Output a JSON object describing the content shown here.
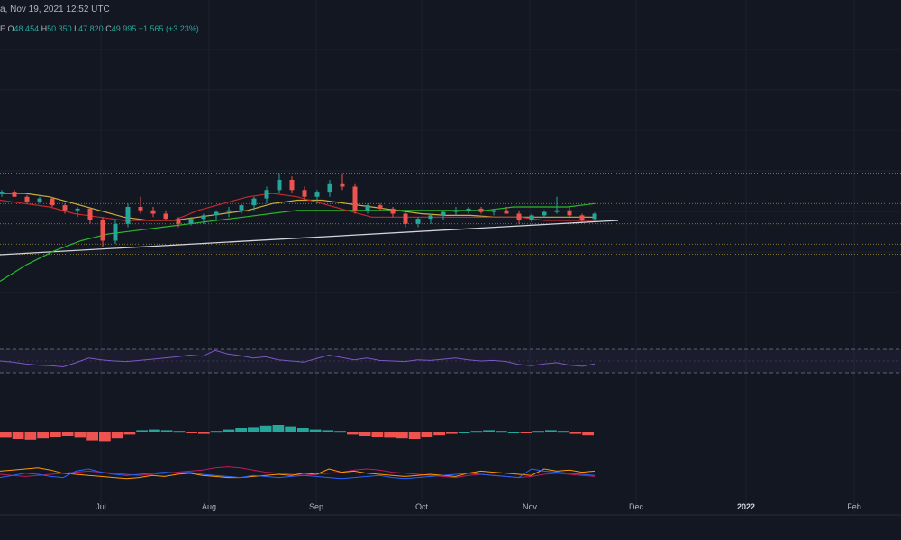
{
  "header": {
    "datetime": "a, Nov 19, 2021 12:52 UTC",
    "ohlc": {
      "prefix": "E",
      "o_label": "O",
      "o": "48.454",
      "h_label": "H",
      "h": "50.350",
      "l_label": "L",
      "l": "47.820",
      "c_label": "C",
      "c": "49.995",
      "change": "+1.565 (+3.23%)"
    }
  },
  "colors": {
    "background": "#131722",
    "grid": "#1e2230",
    "up": "#26a69a",
    "down": "#ef5350",
    "ma_fast": "#c2292c",
    "ma_mid": "#c9b13b",
    "ma_slow": "#2bb52b",
    "trendline": "#d1d4dc",
    "level": "#c9b13b",
    "rsi": "#7e57c2",
    "dmi_plus": "#2962ff",
    "dmi_minus": "#ff9800",
    "adx": "#c2185b"
  },
  "chart_data": {
    "type": "candlestick",
    "x_axis_labels": [
      "Jul",
      "Aug",
      "Sep",
      "Oct",
      "Nov",
      "Dec",
      "2022",
      "Feb"
    ],
    "bold_x_labels": [
      "2022"
    ],
    "grid": true,
    "ohlc_last": {
      "open": 48.454,
      "high": 50.35,
      "low": 47.82,
      "close": 49.995
    },
    "moving_average_fast": [
      54,
      53,
      52,
      50,
      49,
      48,
      48,
      48,
      51,
      53,
      55,
      56,
      55,
      53,
      51,
      49,
      49,
      49,
      49,
      49,
      49,
      49,
      48,
      48,
      48
    ],
    "moving_average_mid": [
      56,
      56,
      55,
      53,
      51,
      49,
      48,
      48,
      49,
      50,
      51,
      53,
      54,
      54,
      53,
      52,
      51,
      50,
      49.5,
      49.5,
      49,
      49,
      49,
      49,
      49
    ],
    "moving_average_slow": [
      30,
      35,
      39,
      42,
      44,
      45,
      46,
      47,
      48,
      49,
      50,
      51,
      51,
      51,
      51,
      51,
      51,
      51,
      51,
      52,
      52,
      52,
      53
    ],
    "price_candles": [
      [
        56,
        57,
        55,
        56.5
      ],
      [
        56.5,
        57,
        55,
        55
      ],
      [
        55,
        55.5,
        53,
        53.5
      ],
      [
        53.5,
        55,
        53,
        54.5
      ],
      [
        54.5,
        55,
        52,
        52.5
      ],
      [
        52.5,
        53,
        50,
        51
      ],
      [
        51,
        52,
        49,
        51.5
      ],
      [
        51.5,
        52,
        47,
        48
      ],
      [
        48,
        49,
        40,
        42
      ],
      [
        42,
        48,
        41,
        47
      ],
      [
        47,
        53,
        46,
        52
      ],
      [
        52,
        55,
        50,
        51
      ],
      [
        51,
        52,
        49,
        50
      ],
      [
        50,
        51,
        48,
        48.5
      ],
      [
        48.5,
        49,
        46,
        47
      ],
      [
        47,
        49,
        46.5,
        48.5
      ],
      [
        48.5,
        50,
        47,
        49.5
      ],
      [
        49.5,
        51,
        48,
        50.5
      ],
      [
        50.5,
        52,
        49,
        51
      ],
      [
        51,
        53,
        50,
        52.5
      ],
      [
        52.5,
        55,
        51,
        54.5
      ],
      [
        54.5,
        58,
        53,
        57
      ],
      [
        57,
        62,
        56,
        60
      ],
      [
        60,
        61,
        56,
        57
      ],
      [
        57,
        58,
        54,
        55
      ],
      [
        55,
        57,
        53,
        56.5
      ],
      [
        56.5,
        60,
        55,
        59
      ],
      [
        59,
        62,
        57,
        58
      ],
      [
        58,
        59,
        50,
        51
      ],
      [
        51,
        53,
        50,
        52.5
      ],
      [
        52.5,
        53,
        51,
        51.5
      ],
      [
        51.5,
        52,
        49,
        50
      ],
      [
        50,
        51,
        46,
        47
      ],
      [
        47,
        49,
        46,
        48.5
      ],
      [
        48.5,
        50,
        47,
        49.5
      ],
      [
        49.5,
        51,
        48,
        50.5
      ],
      [
        50.5,
        52,
        49.5,
        51
      ],
      [
        51,
        52,
        50,
        51.5
      ],
      [
        51.5,
        52,
        50,
        50.5
      ],
      [
        50.5,
        51.5,
        49.5,
        51
      ],
      [
        51,
        52,
        50,
        50
      ],
      [
        50,
        51,
        47,
        48
      ],
      [
        48,
        50,
        47.5,
        49.5
      ],
      [
        49.5,
        51,
        49,
        50.5
      ],
      [
        50.5,
        55,
        50,
        51
      ],
      [
        51,
        52,
        49,
        49.5
      ],
      [
        49.5,
        50,
        47.5,
        48
      ],
      [
        48.454,
        50.35,
        47.82,
        49.995
      ]
    ],
    "horizontal_levels": [
      62,
      53,
      47,
      41,
      38
    ],
    "rsi": {
      "upper": 70,
      "lower": 30,
      "values": [
        50,
        48,
        45,
        43,
        42,
        40,
        47,
        55,
        52,
        50,
        49,
        51,
        53,
        55,
        57,
        60,
        58,
        68,
        62,
        59,
        55,
        57,
        52,
        50,
        48,
        54,
        60,
        56,
        52,
        55,
        51,
        50,
        49,
        52,
        51,
        53,
        55,
        52,
        50,
        51,
        49,
        44,
        42,
        45,
        47,
        43,
        41,
        45
      ]
    },
    "macd_histogram": [
      -0.8,
      -1.0,
      -1.1,
      -0.9,
      -0.7,
      -0.5,
      -0.8,
      -1.2,
      -1.3,
      -0.9,
      -0.3,
      0.2,
      0.3,
      0.2,
      0.1,
      -0.1,
      -0.2,
      0.1,
      0.3,
      0.5,
      0.7,
      0.9,
      1.0,
      0.8,
      0.5,
      0.3,
      0.2,
      0.1,
      -0.3,
      -0.5,
      -0.7,
      -0.8,
      -0.9,
      -1.0,
      -0.7,
      -0.4,
      -0.2,
      0.0,
      0.1,
      0.2,
      0.1,
      0.0,
      -0.1,
      0.1,
      0.2,
      0.1,
      -0.2,
      -0.4
    ],
    "dmi": {
      "plus": [
        12,
        14,
        16,
        15,
        13,
        12,
        18,
        20,
        17,
        15,
        14,
        15,
        16,
        17,
        16,
        17,
        15,
        14,
        13,
        12,
        14,
        13,
        12,
        13,
        14,
        13,
        12,
        11,
        12,
        13,
        14,
        12,
        11,
        12,
        13,
        14,
        15,
        16,
        15,
        14,
        13,
        12,
        20,
        18,
        17,
        16,
        15,
        14
      ],
      "minus": [
        18,
        19,
        20,
        21,
        19,
        16,
        15,
        14,
        13,
        12,
        11,
        12,
        14,
        13,
        15,
        16,
        14,
        13,
        12,
        12,
        13,
        14,
        15,
        14,
        16,
        15,
        20,
        17,
        18,
        16,
        15,
        14,
        13,
        14,
        15,
        14,
        13,
        16,
        18,
        17,
        16,
        15,
        14,
        20,
        18,
        19,
        17,
        18
      ],
      "adx": [
        15,
        14,
        13,
        14,
        15,
        16,
        17,
        18,
        17,
        16,
        15,
        14,
        15,
        16,
        17,
        18,
        19,
        21,
        22,
        21,
        19,
        17,
        16,
        15,
        14,
        15,
        16,
        17,
        19,
        20,
        19,
        17,
        16,
        15,
        14,
        13,
        12,
        14,
        15,
        14,
        13,
        12,
        13,
        15,
        16,
        15,
        14,
        13
      ]
    }
  }
}
